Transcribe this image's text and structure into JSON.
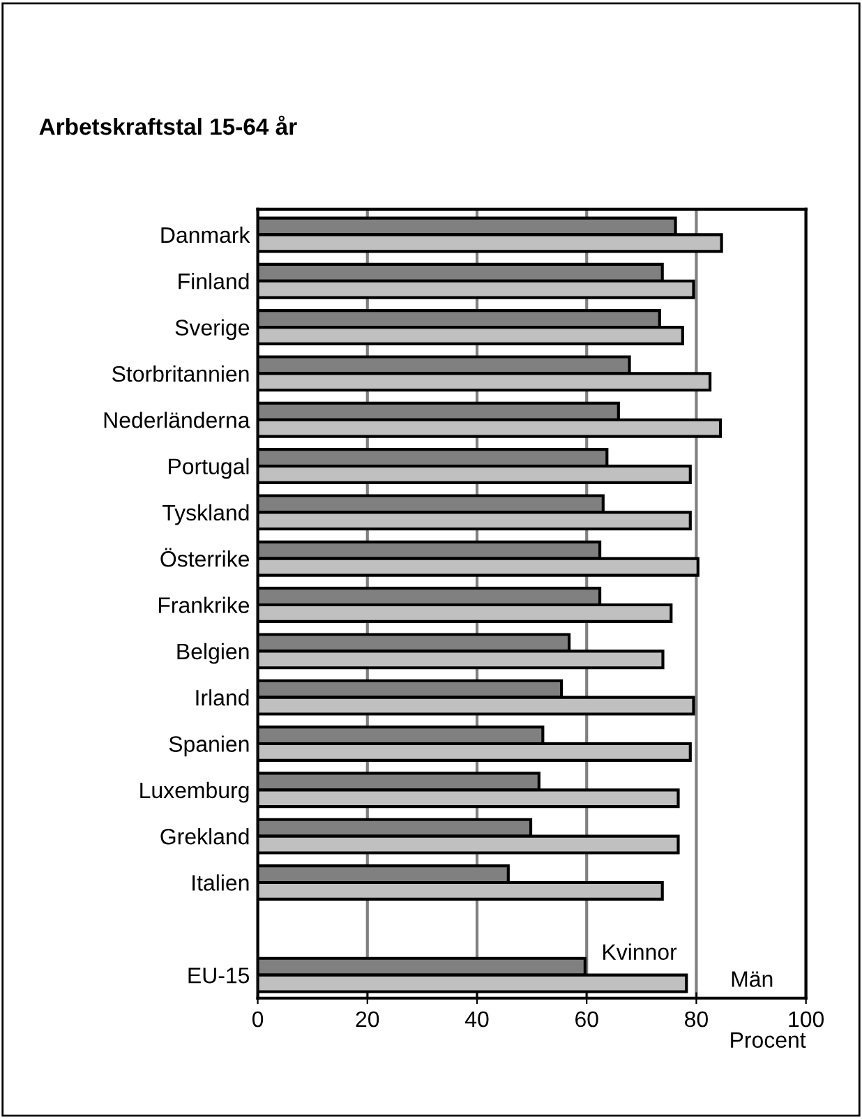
{
  "chart_data": {
    "type": "bar",
    "orientation": "horizontal",
    "title": "Arbetskraftstal 15-64 år",
    "xlabel": "Procent",
    "categories": [
      "Danmark",
      "Finland",
      "Sverige",
      "Storbritannien",
      "Nederländerna",
      "Portugal",
      "Tyskland",
      "Österrike",
      "Frankrike",
      "Belgien",
      "Irland",
      "Spanien",
      "Luxemburg",
      "Grekland",
      "Italien",
      null,
      "EU-15"
    ],
    "series": [
      {
        "name": "Kvinnor",
        "color": "#808080",
        "values": [
          76.2,
          73.8,
          73.3,
          67.8,
          65.8,
          63.7,
          63.0,
          62.4,
          62.4,
          56.8,
          55.4,
          52.0,
          51.3,
          49.8,
          45.7,
          null,
          59.7
        ]
      },
      {
        "name": "Män",
        "color": "#c0c0c0",
        "values": [
          84.6,
          79.5,
          77.5,
          82.5,
          84.4,
          78.9,
          78.9,
          80.3,
          75.4,
          73.9,
          79.5,
          78.9,
          76.7,
          76.7,
          73.8,
          null,
          78.2
        ]
      }
    ],
    "xlim": [
      0,
      100
    ],
    "xticks": [
      0,
      20,
      40,
      60,
      80,
      100
    ],
    "grid": "x",
    "legend": false
  }
}
